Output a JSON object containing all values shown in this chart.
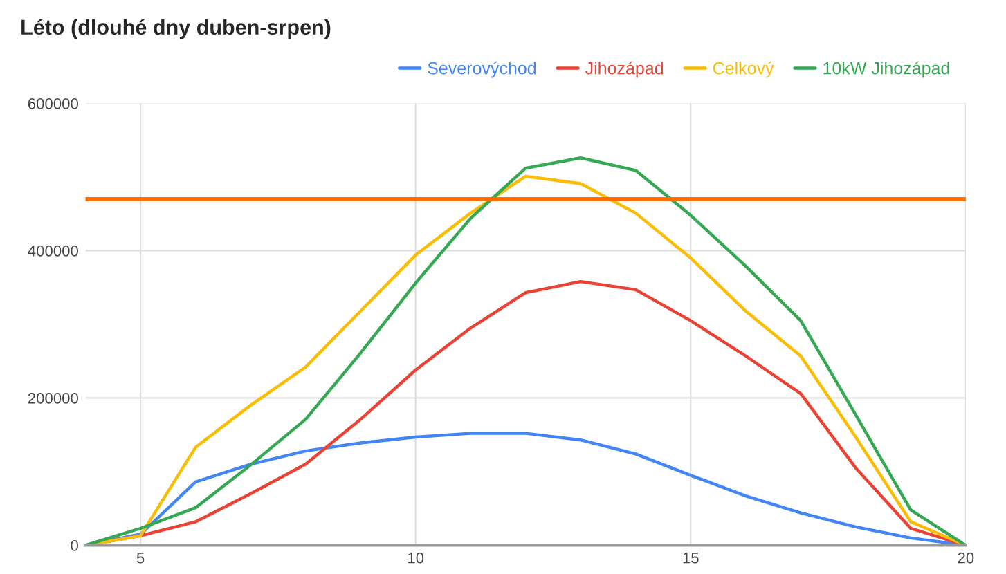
{
  "chart_data": {
    "type": "line",
    "title": "Léto (dlouhé dny duben-srpen)",
    "x": [
      4,
      5,
      6,
      7,
      8,
      9,
      10,
      11,
      12,
      13,
      14,
      15,
      16,
      17,
      18,
      19,
      20
    ],
    "series": [
      {
        "name": "Severovýchod",
        "color": "#4285f4",
        "values": [
          0,
          15000,
          86000,
          110000,
          128000,
          139000,
          147000,
          152000,
          152000,
          143000,
          124000,
          95000,
          67000,
          44000,
          25000,
          10000,
          0
        ]
      },
      {
        "name": "Jihozápad",
        "color": "#ea4335",
        "values": [
          0,
          13000,
          32000,
          70000,
          110000,
          171000,
          238000,
          295000,
          343000,
          358000,
          347000,
          305000,
          257000,
          206000,
          105000,
          23000,
          0
        ]
      },
      {
        "name": "Celkový",
        "color": "#fbbc04",
        "values": [
          0,
          13000,
          133000,
          190000,
          242000,
          318000,
          394000,
          451000,
          501000,
          491000,
          451000,
          390000,
          318000,
          257000,
          147000,
          32000,
          0
        ]
      },
      {
        "name": "10kW Jihozápad",
        "color": "#34a853",
        "values": [
          0,
          23000,
          51000,
          109000,
          171000,
          261000,
          356000,
          444000,
          512000,
          526000,
          509000,
          448000,
          379000,
          305000,
          177000,
          48000,
          0
        ]
      }
    ],
    "ref_lines": [
      {
        "axis": "y",
        "value": 470000,
        "color": "#ff6d01"
      }
    ],
    "xlim": [
      4,
      20
    ],
    "xticks": [
      5,
      10,
      15,
      20
    ],
    "ylim": [
      0,
      600000
    ],
    "yticks": [
      0,
      200000,
      400000,
      600000
    ],
    "grid": true,
    "legend": "top right",
    "line_style": "solid",
    "marker": "none"
  }
}
